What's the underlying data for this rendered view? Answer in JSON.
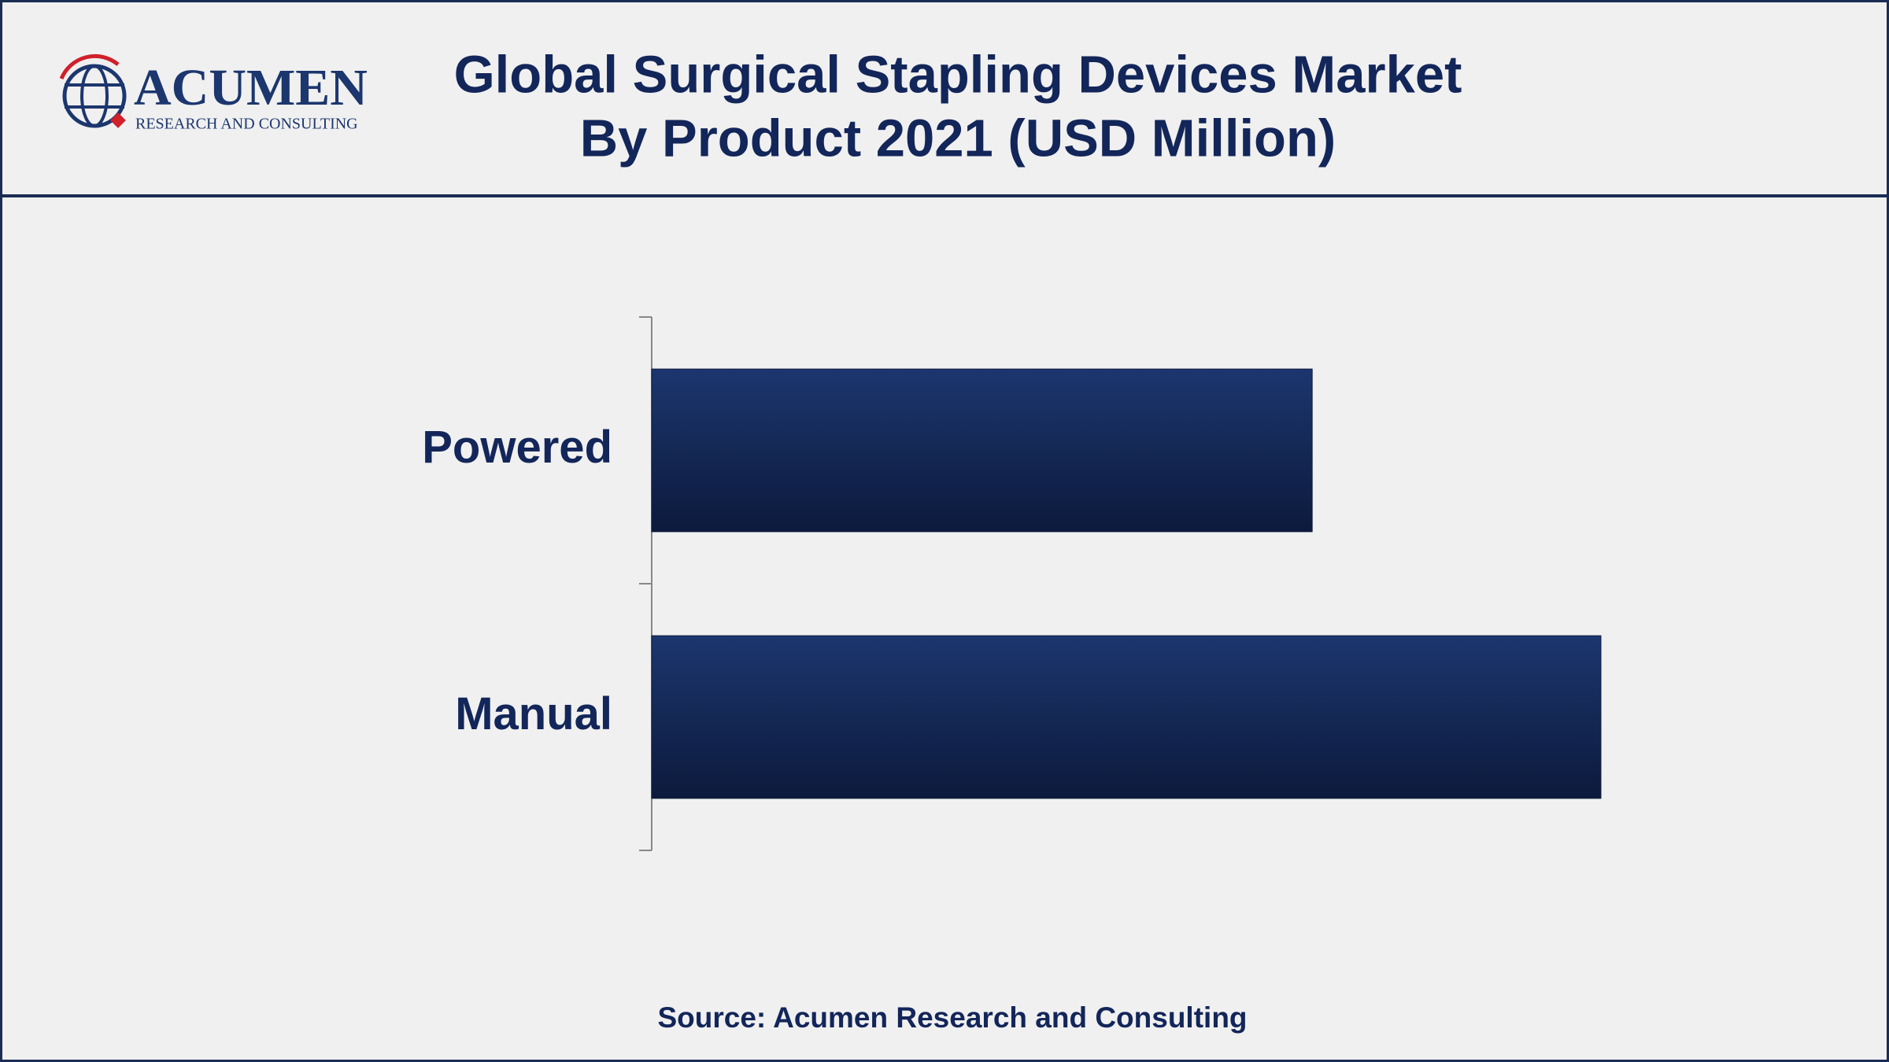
{
  "logo": {
    "name": "ACUMEN",
    "tagline": "RESEARCH AND CONSULTING"
  },
  "chart_data": {
    "type": "bar",
    "orientation": "horizontal",
    "title": [
      "Global Surgical Stapling Devices Market",
      "By Product 2021 (USD Million)"
    ],
    "categories": [
      "Powered",
      "Manual"
    ],
    "values": [
      1670,
      2400
    ],
    "color": "#1c366e",
    "xlim": [
      0,
      2800
    ],
    "source": "Source: Acumen Research and Consulting"
  }
}
